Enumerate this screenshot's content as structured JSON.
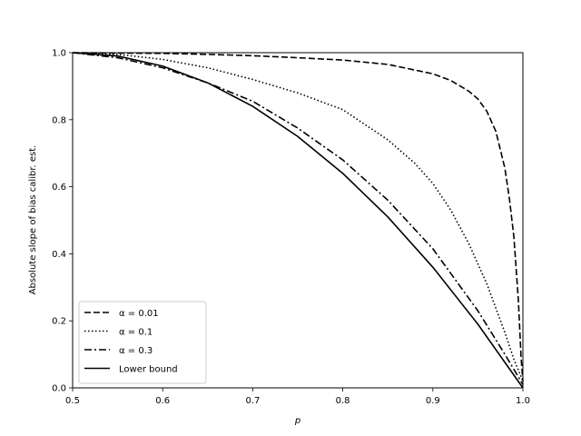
{
  "chart_data": {
    "type": "line",
    "xlabel": "p",
    "ylabel": "Absolute slope of bias calibr. est.",
    "xlim": [
      0.5,
      1.0
    ],
    "ylim": [
      0.0,
      1.0
    ],
    "xticks": [
      "0.5",
      "0.6",
      "0.7",
      "0.8",
      "0.9",
      "1.0"
    ],
    "yticks": [
      "0.0",
      "0.2",
      "0.4",
      "0.6",
      "0.8",
      "1.0"
    ],
    "grid": false,
    "legend_position": "lower-left",
    "line_color": "#000000",
    "series": [
      {
        "name": "α = 0.01",
        "style": "dashed",
        "x": [
          0.5,
          0.55,
          0.6,
          0.65,
          0.7,
          0.75,
          0.8,
          0.85,
          0.9,
          0.92,
          0.94,
          0.95,
          0.96,
          0.97,
          0.98,
          0.985,
          0.99,
          0.995,
          0.998,
          1.0
        ],
        "y": [
          1.0,
          0.999,
          0.998,
          0.995,
          0.991,
          0.985,
          0.978,
          0.965,
          0.937,
          0.917,
          0.885,
          0.862,
          0.825,
          0.765,
          0.655,
          0.565,
          0.45,
          0.26,
          0.09,
          0.02
        ]
      },
      {
        "name": "α = 0.1",
        "style": "dotted",
        "x": [
          0.5,
          0.55,
          0.6,
          0.65,
          0.7,
          0.75,
          0.8,
          0.85,
          0.88,
          0.9,
          0.92,
          0.94,
          0.96,
          0.98,
          0.99,
          1.0
        ],
        "y": [
          1.0,
          0.995,
          0.98,
          0.955,
          0.92,
          0.88,
          0.83,
          0.74,
          0.67,
          0.61,
          0.53,
          0.43,
          0.31,
          0.165,
          0.085,
          0.02
        ]
      },
      {
        "name": "α = 0.3",
        "style": "dashdot",
        "x": [
          0.5,
          0.55,
          0.6,
          0.65,
          0.7,
          0.75,
          0.8,
          0.85,
          0.9,
          0.95,
          0.98,
          1.0
        ],
        "y": [
          1.0,
          0.985,
          0.955,
          0.91,
          0.855,
          0.775,
          0.68,
          0.56,
          0.415,
          0.23,
          0.1,
          0.01
        ]
      },
      {
        "name": "Lower bound",
        "style": "solid",
        "x": [
          0.5,
          0.55,
          0.6,
          0.65,
          0.7,
          0.75,
          0.8,
          0.85,
          0.9,
          0.95,
          1.0
        ],
        "y": [
          1.0,
          0.99,
          0.96,
          0.91,
          0.84,
          0.75,
          0.64,
          0.51,
          0.36,
          0.19,
          0.0
        ]
      }
    ]
  }
}
